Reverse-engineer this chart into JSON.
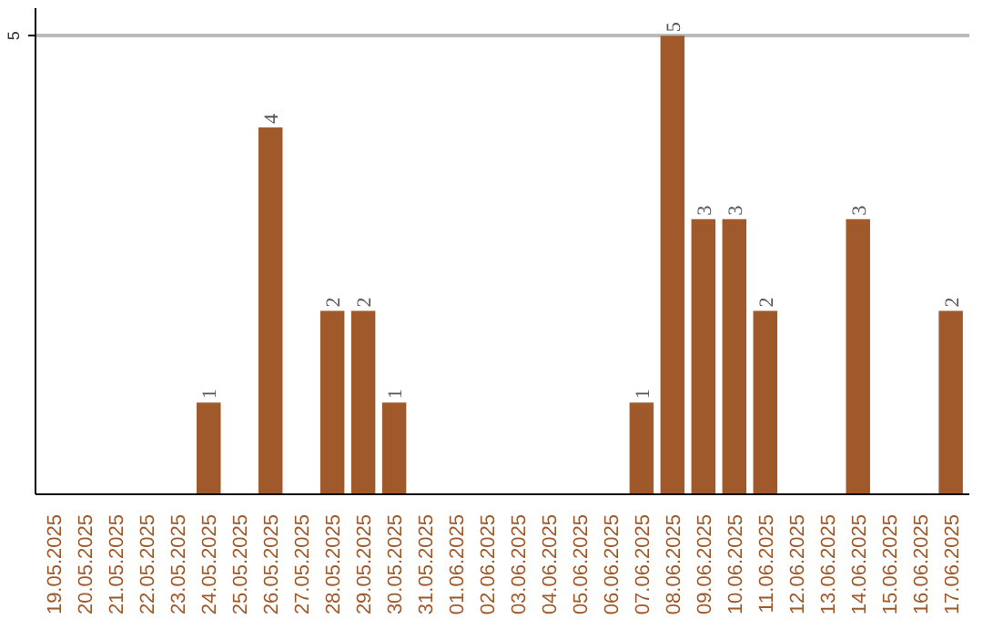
{
  "chart_data": {
    "type": "bar",
    "categories": [
      "19.05.2025",
      "20.05.2025",
      "21.05.2025",
      "22.05.2025",
      "23.05.2025",
      "24.05.2025",
      "25.05.2025",
      "26.05.2025",
      "27.05.2025",
      "28.05.2025",
      "29.05.2025",
      "30.05.2025",
      "31.05.2025",
      "01.06.2025",
      "02.06.2025",
      "03.06.2025",
      "04.06.2025",
      "05.06.2025",
      "06.06.2025",
      "07.06.2025",
      "08.06.2025",
      "09.06.2025",
      "10.06.2025",
      "11.06.2025",
      "12.06.2025",
      "13.06.2025",
      "14.06.2025",
      "15.06.2025",
      "16.06.2025",
      "17.06.2025"
    ],
    "values": [
      0,
      0,
      0,
      0,
      0,
      1,
      0,
      4,
      0,
      2,
      2,
      1,
      0,
      0,
      0,
      0,
      0,
      0,
      0,
      1,
      5,
      3,
      3,
      2,
      0,
      0,
      3,
      0,
      0,
      2
    ],
    "value_labels": [
      null,
      null,
      null,
      null,
      null,
      "1",
      null,
      "4",
      null,
      "2",
      "2",
      "1",
      null,
      null,
      null,
      null,
      null,
      null,
      null,
      "1",
      "5",
      "3",
      "3",
      "2",
      null,
      null,
      "3",
      null,
      null,
      "2"
    ],
    "color": "#a0592a",
    "ylim": [
      0,
      5.3
    ],
    "yticks": [
      5
    ],
    "grid": "y"
  }
}
